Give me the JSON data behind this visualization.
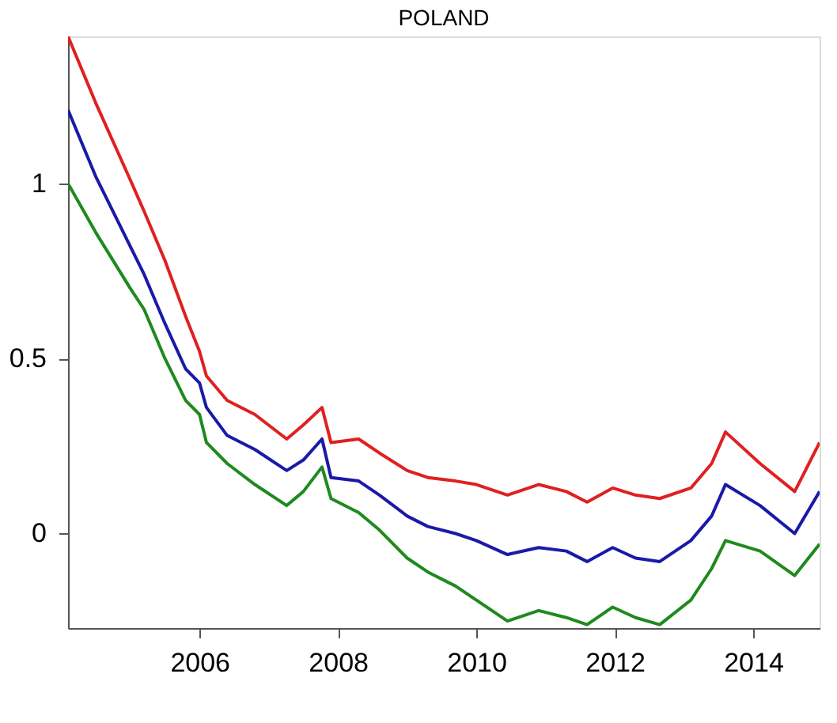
{
  "chart_data": {
    "type": "line",
    "title": "POLAND",
    "x": [
      2004.1,
      2004.5,
      2005.0,
      2005.2,
      2005.5,
      2005.8,
      2006.0,
      2006.1,
      2006.4,
      2006.8,
      2007.26,
      2007.5,
      2007.77,
      2007.9,
      2008.3,
      2008.6,
      2009.0,
      2009.3,
      2009.7,
      2010.0,
      2010.45,
      2010.9,
      2011.3,
      2011.6,
      2011.97,
      2012.3,
      2012.65,
      2013.1,
      2013.4,
      2013.6,
      2014.1,
      2014.6,
      2014.96
    ],
    "series": [
      {
        "color": "#e02020",
        "values": [
          1.42,
          1.23,
          1.01,
          0.92,
          0.78,
          0.62,
          0.52,
          0.45,
          0.38,
          0.34,
          0.27,
          0.31,
          0.36,
          0.26,
          0.27,
          0.23,
          0.18,
          0.16,
          0.15,
          0.14,
          0.11,
          0.14,
          0.12,
          0.09,
          0.13,
          0.11,
          0.1,
          0.13,
          0.2,
          0.29,
          0.2,
          0.12,
          0.26
        ]
      },
      {
        "color": "#1a1aa8",
        "values": [
          1.21,
          1.02,
          0.82,
          0.74,
          0.6,
          0.47,
          0.43,
          0.36,
          0.28,
          0.24,
          0.18,
          0.21,
          0.27,
          0.16,
          0.15,
          0.11,
          0.05,
          0.02,
          0.0,
          -0.02,
          -0.06,
          -0.04,
          -0.05,
          -0.08,
          -0.04,
          -0.07,
          -0.08,
          -0.02,
          0.05,
          0.14,
          0.08,
          0.0,
          0.12
        ]
      },
      {
        "color": "#1f8a1f",
        "values": [
          1.0,
          0.86,
          0.7,
          0.64,
          0.5,
          0.38,
          0.34,
          0.26,
          0.2,
          0.14,
          0.08,
          0.12,
          0.19,
          0.1,
          0.06,
          0.01,
          -0.07,
          -0.11,
          -0.15,
          -0.19,
          -0.25,
          -0.22,
          -0.24,
          -0.26,
          -0.21,
          -0.24,
          -0.26,
          -0.19,
          -0.1,
          -0.02,
          -0.05,
          -0.12,
          -0.03
        ]
      }
    ],
    "xlim": [
      2004.1,
      2014.96
    ],
    "ylim": [
      -0.27,
      1.42
    ],
    "xticks": [
      2006,
      2008,
      2010,
      2012,
      2014
    ],
    "yticks": [
      0,
      0.5,
      1
    ],
    "grid": false,
    "legend": false,
    "marker": "none",
    "line_style": "solid"
  }
}
